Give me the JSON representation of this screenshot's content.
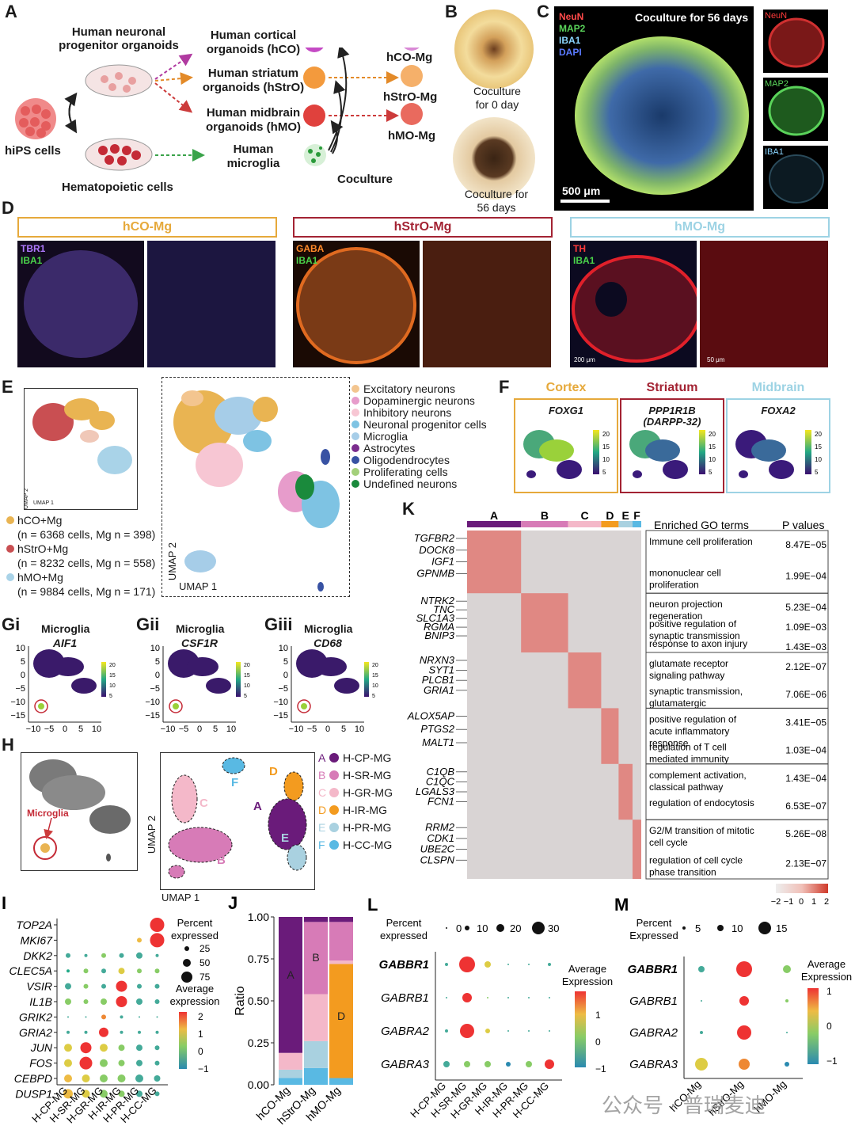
{
  "panelA": {
    "label": "A",
    "hnpo": "Human neuronal progenitor organoids",
    "hips": "hiPS cells",
    "hemato": "Hematopoietic cells",
    "hco": "Human cortical organoids (hCO)",
    "hstro": "Human striatum organoids (hStrO)",
    "hmo": "Human midbrain organoids (hMO)",
    "microglia": "Human microglia",
    "coculture": "Coculture",
    "hcomg": "hCO-Mg",
    "hstromg": "hStrO-Mg",
    "hmomg": "hMO-Mg"
  },
  "panelB": {
    "label": "B",
    "day0": "Coculture for 0 day",
    "day56": "Coculture for 56 days"
  },
  "panelC": {
    "label": "C",
    "title": "Coculture for 56 days",
    "neun": "NeuN",
    "map2": "MAP2",
    "iba1": "IBA1",
    "dapi": "DAPI",
    "scale": "500 μm"
  },
  "panelD": {
    "label": "D",
    "hco": "hCO-Mg",
    "hstro": "hStrO-Mg",
    "hmo": "hMO-Mg",
    "tbr1": "TBR1",
    "gaba": "GABA",
    "th": "TH",
    "iba1": "IBA1",
    "scale200": "200 μm",
    "scale50": "50 μm"
  },
  "panelE": {
    "label": "E",
    "legend": [
      "Excitatory neurons",
      "Dopaminergic neurons",
      "Inhibitory neurons",
      "Neuronal progenitor cells",
      "Microglia",
      "Astrocytes",
      "Oligodendrocytes",
      "Proliferating cells",
      "Undefined neurons"
    ],
    "legend_colors": [
      "#f3c58f",
      "#e79ccb",
      "#f7c6d3",
      "#7ec3e3",
      "#a6cde8",
      "#7b2d8e",
      "#3852a3",
      "#a3d07a",
      "#1a8a3c"
    ],
    "groups": [
      {
        "name": "hCO+Mg",
        "detail": "(n = 6368 cells, Mg n = 398)"
      },
      {
        "name": "hStrO+Mg",
        "detail": "(n = 8232 cells, Mg n = 558)"
      },
      {
        "name": "hMO+Mg",
        "detail": "(n = 9884 cells, Mg n = 171)"
      }
    ],
    "group_colors": [
      "#e9b452",
      "#c94f52",
      "#a9d3e8"
    ],
    "umap1": "UMAP 1",
    "umap2": "UMAP 2"
  },
  "panelF": {
    "label": "F",
    "regions": [
      {
        "region": "Cortex",
        "gene": "FOXG1",
        "color": "#e6a93b"
      },
      {
        "region": "Striatum",
        "gene": "PPP1R1B",
        "gene2": "(DARPP-32)",
        "color": "#a32333"
      },
      {
        "region": "Midbrain",
        "gene": "FOXA2",
        "color": "#9dd3e4"
      }
    ],
    "ticks": [
      "20",
      "15",
      "10",
      "5"
    ]
  },
  "panelG": [
    {
      "label": "Gi",
      "title": "Microglia",
      "gene": "AIF1"
    },
    {
      "label": "Gii",
      "title": "Microglia",
      "gene": "CSF1R"
    },
    {
      "label": "Giii",
      "title": "Microglia",
      "gene": "CD68"
    }
  ],
  "panelG_axes": {
    "yticks": [
      "10",
      "5",
      "0",
      "−5",
      "−10",
      "−15"
    ],
    "xticks": [
      "−10",
      "−5",
      "0",
      "5",
      "10"
    ],
    "cticks": [
      "20",
      "15",
      "10",
      "5"
    ]
  },
  "panelH": {
    "label": "H",
    "microglia": "Microglia",
    "umap1": "UMAP 1",
    "umap2": "UMAP 2",
    "clusters": [
      {
        "letter": "A",
        "name": "H-CP-MG",
        "color": "#6a1b7a"
      },
      {
        "letter": "B",
        "name": "H-SR-MG",
        "color": "#d77bb7"
      },
      {
        "letter": "C",
        "name": "H-GR-MG",
        "color": "#f4b8c9"
      },
      {
        "letter": "D",
        "name": "H-IR-MG",
        "color": "#f39b1f"
      },
      {
        "letter": "E",
        "name": "H-PR-MG",
        "color": "#a9d1e0"
      },
      {
        "letter": "F",
        "name": "H-CC-MG",
        "color": "#59b9e3"
      }
    ]
  },
  "panelI": {
    "label": "I",
    "genes": [
      "TOP2A",
      "MKI67",
      "DKK2",
      "CLEC5A",
      "VSIR",
      "IL1B",
      "GRIK2",
      "GRIA2",
      "JUN",
      "FOS",
      "CEBPD",
      "DUSP1"
    ],
    "groups": [
      "H-CP-MG",
      "H-SR-MG",
      "H-GR-MG",
      "H-IR-MG",
      "H-PR-MG",
      "H-CC-MG"
    ],
    "pct_title": "Percent expressed",
    "pct_values": [
      "25",
      "50",
      "75"
    ],
    "avg_title": "Average expression",
    "avg_ticks": [
      "2",
      "1",
      "0",
      "−1"
    ]
  },
  "panelJ": {
    "label": "J",
    "ylabel": "Ratio",
    "yticks": [
      "1.00",
      "0.75",
      "0.50",
      "0.25",
      "0.00"
    ],
    "categories": [
      "hCO-Mg",
      "hStrO-Mg",
      "hMO-Mg"
    ]
  },
  "chart_data": [
    {
      "type": "bar",
      "stacked": true,
      "categories": [
        "hCO-Mg",
        "hStrO-Mg",
        "hMO-Mg"
      ],
      "ylabel": "Ratio",
      "ylim": [
        0,
        1
      ],
      "series": [
        {
          "name": "F",
          "color": "#59b9e3",
          "values": [
            0.04,
            0.1,
            0.04
          ]
        },
        {
          "name": "E",
          "color": "#a9d1e0",
          "values": [
            0.05,
            0.16,
            0.0
          ]
        },
        {
          "name": "D",
          "color": "#f39b1f",
          "values": [
            0.0,
            0.0,
            0.68
          ]
        },
        {
          "name": "C",
          "color": "#f4b8c9",
          "values": [
            0.1,
            0.28,
            0.02
          ]
        },
        {
          "name": "B",
          "color": "#d77bb7",
          "values": [
            0.0,
            0.43,
            0.23
          ]
        },
        {
          "name": "A",
          "color": "#6a1b7a",
          "values": [
            0.81,
            0.03,
            0.03
          ]
        }
      ]
    }
  ],
  "panelK": {
    "label": "K",
    "clusters": [
      "A",
      "B",
      "C",
      "D",
      "E",
      "F"
    ],
    "cluster_colors": [
      "#6a1b7a",
      "#d77bb7",
      "#f4b8c9",
      "#f39b1f",
      "#a9d1e0",
      "#59b9e3"
    ],
    "go_header": "Enriched GO terms",
    "p_header": "P values",
    "gene_groups": [
      [
        "TGFBR2",
        "DOCK8",
        "IGF1",
        "GPNMB"
      ],
      [
        "NTRK2",
        "TNC",
        "SLC1A3",
        "RGMA",
        "BNIP3"
      ],
      [
        "NRXN3",
        "SYT1",
        "PLCB1",
        "GRIA1"
      ],
      [
        "ALOX5AP",
        "PTGS2",
        "MALT1"
      ],
      [
        "C1QB",
        "C1QC",
        "LGALS3",
        "FCN1"
      ],
      [
        "RRM2",
        "CDK1",
        "UBE2C",
        "CLSPN"
      ]
    ],
    "go": [
      [
        {
          "term": "Immune cell proliferation",
          "p": "8.47E−05"
        },
        {
          "term": "mononuclear cell proliferation",
          "p": "1.99E−04"
        }
      ],
      [
        {
          "term": "neuron projection regeneration",
          "p": "5.23E−04"
        },
        {
          "term": "positive regulation of synaptic transmission",
          "p": "1.09E−03"
        },
        {
          "term": "response to axon injury",
          "p": "1.43E−03"
        }
      ],
      [
        {
          "term": "glutamate receptor signaling pathway",
          "p": "2.12E−07"
        },
        {
          "term": "synaptic transmission, glutamatergic",
          "p": "7.06E−06"
        }
      ],
      [
        {
          "term": "positive regulation of acute inflammatory response",
          "p": "3.41E−05"
        },
        {
          "term": "regulation of T cell mediated immunity",
          "p": "1.03E−04"
        }
      ],
      [
        {
          "term": "complement activation, classical pathway",
          "p": "1.43E−04"
        },
        {
          "term": "regulation of endocytosis",
          "p": "6.53E−07"
        }
      ],
      [
        {
          "term": "G2/M transition of mitotic cell cycle",
          "p": "5.26E−08"
        },
        {
          "term": "regulation of cell cycle phase transition",
          "p": "2.13E−07"
        }
      ]
    ],
    "scale_ticks": [
      "−2",
      "−1",
      "0",
      "1",
      "2"
    ]
  },
  "panelL": {
    "label": "L",
    "genes": [
      "GABBR1",
      "GABRB1",
      "GABRA2",
      "GABRA3"
    ],
    "groups": [
      "H-CP-MG",
      "H-SR-MG",
      "H-GR-MG",
      "H-IR-MG",
      "H-PR-MG",
      "H-CC-MG"
    ],
    "pct_title": "Percent expressed",
    "pct_values": [
      "0",
      "10",
      "20",
      "30"
    ],
    "avg_title": "Average Expression",
    "avg_ticks": [
      "1",
      "0",
      "−1"
    ]
  },
  "panelM": {
    "label": "M",
    "genes": [
      "GABBR1",
      "GABRB1",
      "GABRA2",
      "GABRA3"
    ],
    "groups": [
      "hCO-Mg",
      "hStrO-Mg",
      "hMO-Mg"
    ],
    "pct_title": "Percent Expressed",
    "pct_values": [
      "5",
      "10",
      "15"
    ],
    "avg_title": "Average Expression",
    "avg_ticks": [
      "1",
      "0",
      "−1"
    ]
  },
  "watermark": "公众号 · 普瑞麦迪"
}
